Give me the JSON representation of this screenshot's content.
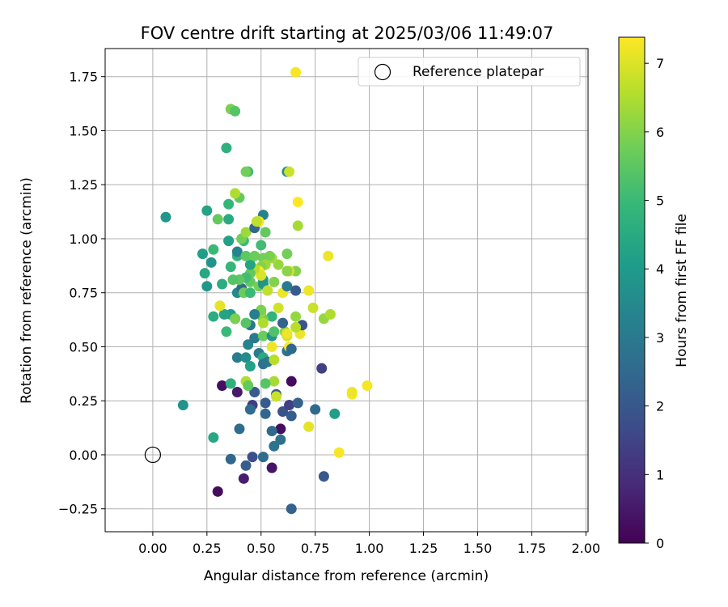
{
  "chart_data": {
    "type": "scatter",
    "title": "FOV centre drift starting at 2025/03/06 11:49:07",
    "xlabel": "Angular distance from reference (arcmin)",
    "ylabel": "Rotation from reference (arcmin)",
    "xlim": [
      -0.22,
      2.01
    ],
    "ylim": [
      -0.356,
      1.88
    ],
    "xticks": [
      0.0,
      0.25,
      0.5,
      0.75,
      1.0,
      1.25,
      1.5,
      1.75,
      2.0
    ],
    "xtick_labels": [
      "0.00",
      "0.25",
      "0.50",
      "0.75",
      "1.00",
      "1.25",
      "1.50",
      "1.75",
      "2.00"
    ],
    "yticks": [
      -0.25,
      0.0,
      0.25,
      0.5,
      0.75,
      1.0,
      1.25,
      1.5,
      1.75
    ],
    "ytick_labels": [
      "−0.25",
      "0.00",
      "0.25",
      "0.50",
      "0.75",
      "1.00",
      "1.25",
      "1.50",
      "1.75"
    ],
    "grid": true,
    "legend": {
      "placement": "upper-right",
      "entries": [
        "Reference platepar"
      ]
    },
    "reference_point": {
      "x": 0.0,
      "y": 0.0,
      "label": "Reference platepar",
      "marker": "open-circle"
    },
    "colorbar": {
      "label": "Hours from first FF file",
      "min": 0,
      "max": 7.38,
      "ticks": [
        0,
        1,
        2,
        3,
        4,
        5,
        6,
        7
      ],
      "tick_labels": [
        "0",
        "1",
        "2",
        "3",
        "4",
        "5",
        "6",
        "7"
      ],
      "colormap": "viridis",
      "colormap_stops": [
        "#440154",
        "#482878",
        "#3e4a89",
        "#31688e",
        "#26828e",
        "#1f9e89",
        "#35b779",
        "#6dcd59",
        "#b4de2c",
        "#fde725"
      ]
    },
    "series": [
      {
        "points": [
          [
            0.3,
            -0.17,
            0.2
          ],
          [
            0.42,
            -0.11,
            0.6
          ],
          [
            0.55,
            -0.06,
            0.4
          ],
          [
            0.64,
            -0.25,
            2.3
          ],
          [
            0.36,
            -0.02,
            2.4
          ],
          [
            0.43,
            -0.05,
            2.2
          ],
          [
            0.46,
            -0.01,
            1.8
          ],
          [
            0.51,
            -0.01,
            2.6
          ],
          [
            0.79,
            -0.1,
            2.0
          ],
          [
            0.56,
            0.04,
            2.8
          ],
          [
            0.59,
            0.07,
            2.7
          ],
          [
            0.59,
            0.12,
            0.3
          ],
          [
            0.55,
            0.11,
            2.5
          ],
          [
            0.4,
            0.12,
            2.6
          ],
          [
            0.28,
            0.08,
            4.4
          ],
          [
            0.14,
            0.23,
            3.8
          ],
          [
            0.32,
            0.32,
            0.3
          ],
          [
            0.39,
            0.29,
            0.5
          ],
          [
            0.46,
            0.23,
            1.3
          ],
          [
            0.45,
            0.21,
            2.6
          ],
          [
            0.47,
            0.29,
            2.1
          ],
          [
            0.52,
            0.24,
            2.1
          ],
          [
            0.52,
            0.19,
            2.4
          ],
          [
            0.6,
            0.2,
            1.9
          ],
          [
            0.63,
            0.23,
            1.4
          ],
          [
            0.64,
            0.18,
            2.2
          ],
          [
            0.64,
            0.34,
            0.2
          ],
          [
            0.67,
            0.24,
            2.3
          ],
          [
            0.75,
            0.21,
            2.5
          ],
          [
            0.78,
            0.4,
            1.4
          ],
          [
            0.84,
            0.19,
            4.1
          ],
          [
            0.86,
            0.01,
            7.3
          ],
          [
            0.92,
            0.28,
            7.3
          ],
          [
            0.92,
            0.29,
            7.2
          ],
          [
            0.99,
            0.32,
            7.3
          ],
          [
            0.72,
            0.13,
            7.1
          ],
          [
            0.57,
            0.28,
            2.0
          ],
          [
            0.57,
            0.27,
            6.8
          ],
          [
            0.56,
            0.34,
            6.4
          ],
          [
            0.43,
            0.34,
            6.5
          ],
          [
            0.44,
            0.32,
            5.6
          ],
          [
            0.36,
            0.33,
            4.7
          ],
          [
            0.52,
            0.33,
            5.4
          ],
          [
            0.39,
            0.45,
            3.1
          ],
          [
            0.43,
            0.45,
            3.6
          ],
          [
            0.45,
            0.41,
            4.2
          ],
          [
            0.49,
            0.47,
            3.1
          ],
          [
            0.51,
            0.45,
            4.5
          ],
          [
            0.51,
            0.42,
            2.8
          ],
          [
            0.53,
            0.43,
            2.9
          ],
          [
            0.56,
            0.44,
            6.6
          ],
          [
            0.55,
            0.5,
            7.2
          ],
          [
            0.62,
            0.48,
            2.9
          ],
          [
            0.63,
            0.5,
            7.4
          ],
          [
            0.64,
            0.49,
            2.5
          ],
          [
            0.44,
            0.51,
            3.3
          ],
          [
            0.47,
            0.54,
            3.0
          ],
          [
            0.51,
            0.55,
            5.7
          ],
          [
            0.55,
            0.55,
            3.8
          ],
          [
            0.56,
            0.57,
            5.3
          ],
          [
            0.61,
            0.57,
            6.2
          ],
          [
            0.62,
            0.55,
            6.9
          ],
          [
            0.62,
            0.56,
            7.2
          ],
          [
            0.68,
            0.56,
            7.2
          ],
          [
            0.69,
            0.6,
            1.9
          ],
          [
            0.66,
            0.59,
            6.6
          ],
          [
            0.6,
            0.61,
            2.3
          ],
          [
            0.66,
            0.64,
            6.2
          ],
          [
            0.58,
            0.68,
            6.9
          ],
          [
            0.55,
            0.64,
            4.8
          ],
          [
            0.51,
            0.63,
            5.8
          ],
          [
            0.51,
            0.61,
            6.5
          ],
          [
            0.5,
            0.66,
            6.2
          ],
          [
            0.5,
            0.67,
            5.9
          ],
          [
            0.47,
            0.65,
            3.2
          ],
          [
            0.45,
            0.6,
            2.9
          ],
          [
            0.43,
            0.61,
            5.4
          ],
          [
            0.38,
            0.63,
            2.7
          ],
          [
            0.36,
            0.65,
            4.0
          ],
          [
            0.33,
            0.65,
            4.3
          ],
          [
            0.28,
            0.64,
            4.6
          ],
          [
            0.31,
            0.69,
            7.1
          ],
          [
            0.34,
            0.57,
            5.0
          ],
          [
            0.38,
            0.63,
            5.9
          ],
          [
            0.39,
            0.75,
            3.5
          ],
          [
            0.41,
            0.77,
            2.6
          ],
          [
            0.42,
            0.75,
            5.7
          ],
          [
            0.45,
            0.8,
            5.6
          ],
          [
            0.45,
            0.75,
            5.0
          ],
          [
            0.49,
            0.78,
            5.8
          ],
          [
            0.51,
            0.81,
            4.2
          ],
          [
            0.51,
            0.79,
            3.8
          ],
          [
            0.53,
            0.76,
            6.7
          ],
          [
            0.56,
            0.8,
            6.0
          ],
          [
            0.6,
            0.75,
            7.2
          ],
          [
            0.62,
            0.78,
            3.0
          ],
          [
            0.66,
            0.76,
            2.1
          ],
          [
            0.72,
            0.76,
            7.2
          ],
          [
            0.74,
            0.68,
            6.8
          ],
          [
            0.79,
            0.63,
            6.2
          ],
          [
            0.82,
            0.65,
            6.5
          ],
          [
            0.81,
            0.92,
            7.2
          ],
          [
            0.66,
            0.85,
            6.0
          ],
          [
            0.63,
            0.85,
            6.9
          ],
          [
            0.62,
            0.85,
            6.1
          ],
          [
            0.62,
            0.93,
            5.8
          ],
          [
            0.58,
            0.88,
            6.2
          ],
          [
            0.55,
            0.91,
            6.4
          ],
          [
            0.54,
            0.92,
            5.9
          ],
          [
            0.51,
            0.91,
            5.8
          ],
          [
            0.52,
            0.88,
            6.3
          ],
          [
            0.5,
            0.87,
            6.0
          ],
          [
            0.49,
            0.85,
            7.4
          ],
          [
            0.5,
            0.83,
            7.0
          ],
          [
            0.47,
            0.86,
            6.6
          ],
          [
            0.45,
            0.84,
            5.6
          ],
          [
            0.45,
            0.88,
            4.3
          ],
          [
            0.43,
            0.82,
            5.1
          ],
          [
            0.4,
            0.81,
            5.5
          ],
          [
            0.37,
            0.81,
            5.4
          ],
          [
            0.32,
            0.79,
            4.6
          ],
          [
            0.25,
            0.78,
            3.9
          ],
          [
            0.24,
            0.84,
            4.4
          ],
          [
            0.23,
            0.93,
            4.1
          ],
          [
            0.27,
            0.89,
            3.8
          ],
          [
            0.28,
            0.95,
            5.0
          ],
          [
            0.3,
            1.09,
            5.6
          ],
          [
            0.36,
            0.87,
            4.9
          ],
          [
            0.35,
            0.99,
            4.2
          ],
          [
            0.39,
            0.92,
            4.8
          ],
          [
            0.39,
            0.94,
            3.3
          ],
          [
            0.42,
            0.99,
            5.0
          ],
          [
            0.41,
            1.0,
            5.8
          ],
          [
            0.43,
            1.03,
            6.3
          ],
          [
            0.43,
            0.92,
            5.5
          ],
          [
            0.47,
            0.92,
            5.7
          ],
          [
            0.5,
            0.97,
            5.1
          ],
          [
            0.52,
            1.03,
            5.6
          ],
          [
            0.51,
            1.11,
            3.3
          ],
          [
            0.47,
            1.05,
            2.5
          ],
          [
            0.49,
            1.08,
            7.3
          ],
          [
            0.48,
            1.08,
            6.7
          ],
          [
            0.35,
            1.09,
            4.5
          ],
          [
            0.25,
            1.13,
            4.3
          ],
          [
            0.06,
            1.1,
            3.9
          ],
          [
            0.35,
            1.16,
            4.9
          ],
          [
            0.4,
            1.19,
            5.6
          ],
          [
            0.38,
            1.21,
            6.5
          ],
          [
            0.44,
            1.31,
            5.0
          ],
          [
            0.43,
            1.31,
            5.8
          ],
          [
            0.62,
            1.31,
            3.5
          ],
          [
            0.63,
            1.31,
            6.8
          ],
          [
            0.67,
            1.17,
            7.4
          ],
          [
            0.67,
            1.06,
            6.4
          ],
          [
            0.34,
            1.42,
            4.7
          ],
          [
            0.36,
            1.6,
            5.9
          ],
          [
            0.38,
            1.59,
            5.4
          ],
          [
            0.66,
            1.77,
            7.3
          ]
        ]
      }
    ]
  }
}
